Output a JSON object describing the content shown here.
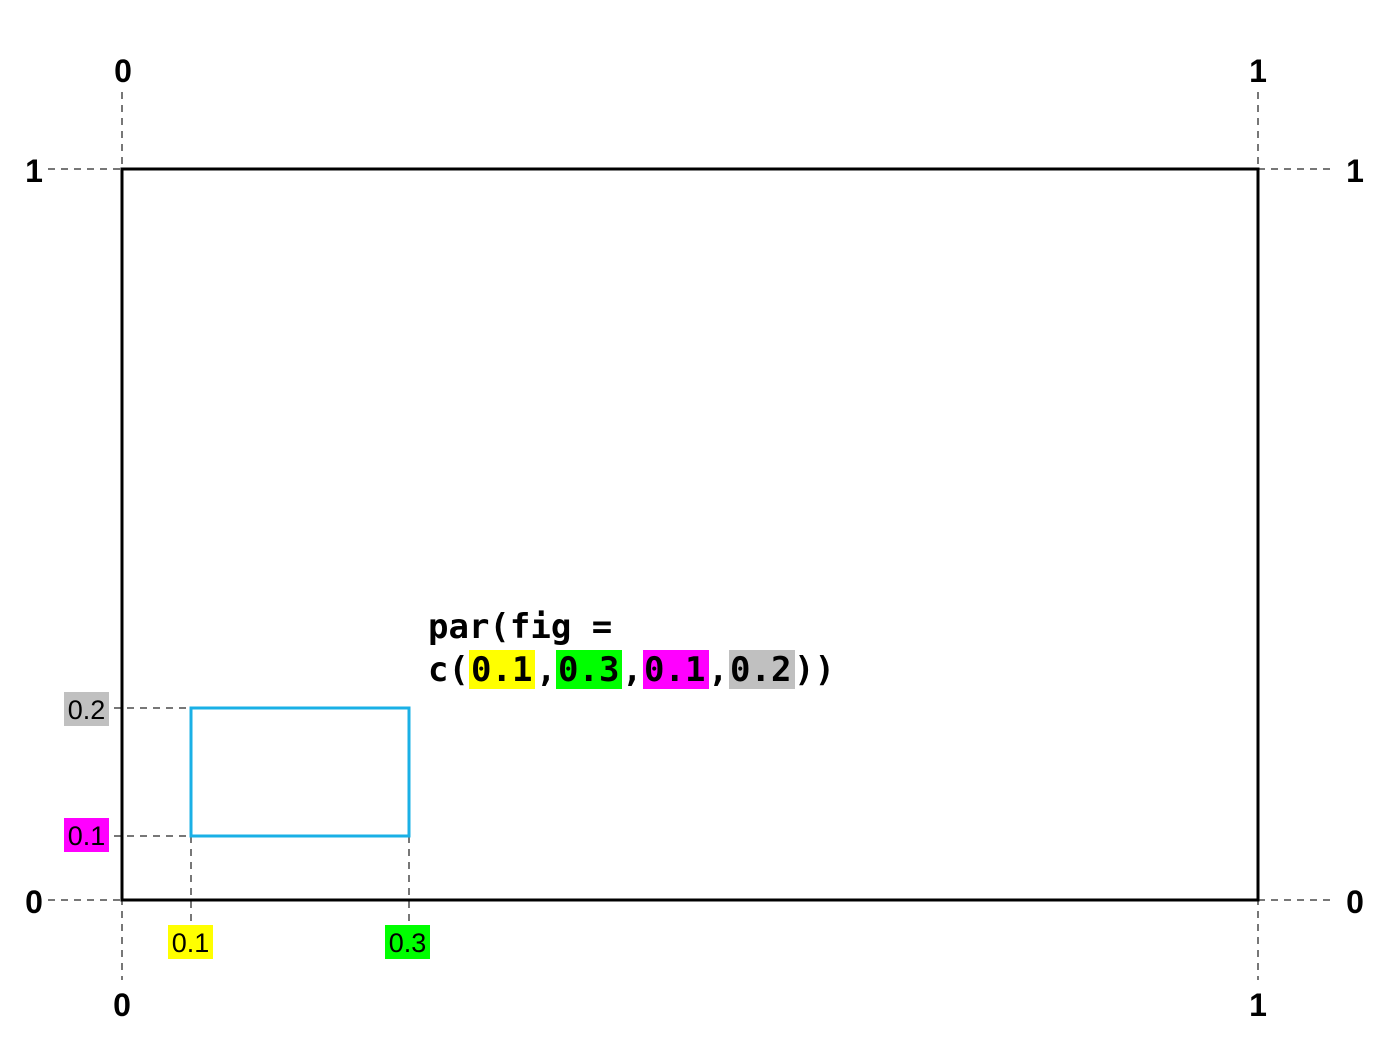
{
  "corner_labels": {
    "top_left_x": "0",
    "top_right_x": "1",
    "left_top_y": "1",
    "right_top_y": "1",
    "left_bottom_y": "0",
    "right_bottom_y": "0",
    "bottom_left_x": "0",
    "bottom_right_x": "1"
  },
  "fig_labels": {
    "x1": "0.1",
    "x2": "0.3",
    "y1": "0.1",
    "y2": "0.2"
  },
  "code": {
    "line1": "par(fig =",
    "prefix": "c(",
    "v1": "0.1",
    "sep1": ",",
    "v2": "0.3",
    "sep2": ",",
    "v3": "0.1",
    "sep3": ",",
    "v4": "0.2",
    "suffix": "))"
  },
  "colors": {
    "x1_highlight": "#ffff00",
    "x2_highlight": "#00ff00",
    "y1_highlight": "#ff00ff",
    "y2_highlight": "#c0c0c0",
    "inner_box": "#1ab0e6",
    "outer_box": "#000000",
    "guide_lines": "#777777"
  }
}
